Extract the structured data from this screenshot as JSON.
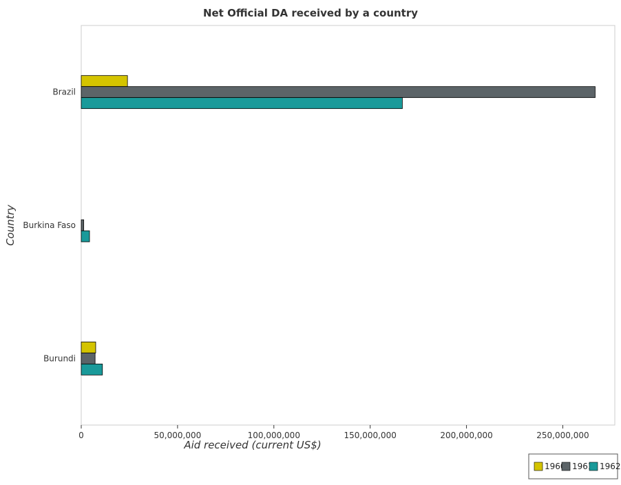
{
  "chart_data": {
    "type": "bar",
    "orientation": "horizontal",
    "title": "Net Official DA received by a country",
    "xlabel": "Aid received (current US$)",
    "ylabel": "Country",
    "categories": [
      "Brazil",
      "Burkina Faso",
      "Burundi"
    ],
    "series": [
      {
        "name": "1960",
        "color": "#d4c400",
        "values": [
          24000000,
          0,
          7500000
        ]
      },
      {
        "name": "1961",
        "color": "#5c6468",
        "values": [
          266800000,
          1300000,
          7200000
        ]
      },
      {
        "name": "1962",
        "color": "#1a9a9a",
        "values": [
          166700000,
          4300000,
          11000000
        ]
      }
    ],
    "xlim": [
      0,
      277000000
    ],
    "x_ticks": [
      0,
      50000000,
      100000000,
      150000000,
      200000000,
      250000000
    ],
    "x_tick_labels": [
      "0",
      "50,000,000",
      "100,000,000",
      "150,000,000",
      "200,000,000",
      "250,000,000"
    ],
    "grid": false,
    "legend_position": "bottom-right"
  }
}
